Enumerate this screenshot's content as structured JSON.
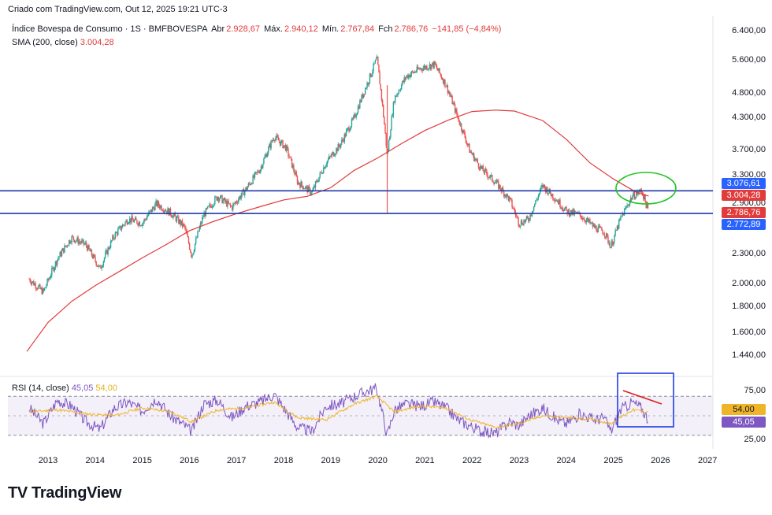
{
  "created_by": "Criado com TradingView.com, Out 12, 2025 19:21 UTC-3",
  "header": {
    "title": "Índice Bovespa de Consumo · 1S · BMFBOVESPA",
    "open_label": "Abr",
    "open_value": "2.928,67",
    "high_label": "Máx.",
    "high_value": "2.940,12",
    "low_label": "Mín.",
    "low_value": "2.767,84",
    "close_label": "Fch",
    "close_value": "2.786,76",
    "change_value": "−141,85 (−4,84%)"
  },
  "sma": {
    "label": "SMA (200, close)",
    "value": "3.004,28"
  },
  "rsi": {
    "label": "RSI (14, close)",
    "value": "45,05",
    "ma_value": "54,00"
  },
  "logo_text": "TradingView",
  "colors": {
    "price_up": "#26a69a",
    "price_down": "#ef5350",
    "sma": "#e23b3b",
    "blue_line": "#1e3aa8",
    "rsi": "#7e57c2",
    "rsi_ma": "#f0b429",
    "annotation_green": "#22c322",
    "annotation_blue": "#1f3de0",
    "annotation_red": "#e01d1d",
    "badge_blue": "#2962ff",
    "badge_red": "#e23b3b"
  },
  "chart_data": [
    {
      "type": "line",
      "title": "Índice Bovespa de Consumo · 1S · BMFBOVESPA",
      "scale": "log",
      "x_ticks": [
        "2013",
        "2014",
        "2015",
        "2016",
        "2017",
        "2018",
        "2019",
        "2020",
        "2021",
        "2022",
        "2023",
        "2024",
        "2025",
        "2026",
        "2027"
      ],
      "y_ticks": [
        "6.400,00",
        "5.600,00",
        "4.800,00",
        "4.300,00",
        "3.700,00",
        "3.300,00",
        "2.900,00",
        "2.300,00",
        "2.000,00",
        "1.800,00",
        "1.600,00",
        "1.440,00"
      ],
      "ylim": [
        1380,
        6700
      ],
      "series": [
        {
          "name": "Preço (close)",
          "x": [
            2012.6,
            2012.9,
            2013.2,
            2013.5,
            2013.8,
            2014.1,
            2014.4,
            2014.7,
            2015.0,
            2015.3,
            2015.6,
            2015.9,
            2016.05,
            2016.3,
            2016.6,
            2016.9,
            2017.2,
            2017.5,
            2017.8,
            2018.05,
            2018.3,
            2018.6,
            2018.9,
            2019.2,
            2019.5,
            2019.8,
            2019.98,
            2020.2,
            2020.35,
            2020.6,
            2020.9,
            2021.2,
            2021.45,
            2021.7,
            2021.95,
            2022.2,
            2022.5,
            2022.8,
            2023.0,
            2023.2,
            2023.5,
            2023.8,
            2024.0,
            2024.3,
            2024.6,
            2024.8,
            2024.95,
            2025.15,
            2025.4,
            2025.6,
            2025.75
          ],
          "values": [
            2050,
            1930,
            2250,
            2480,
            2400,
            2150,
            2500,
            2700,
            2650,
            2900,
            2780,
            2600,
            2280,
            2750,
            3000,
            2850,
            3100,
            3400,
            3950,
            3750,
            3200,
            3050,
            3500,
            3800,
            4300,
            5100,
            5650,
            3600,
            4700,
            5200,
            5400,
            5500,
            5000,
            4300,
            3700,
            3400,
            3200,
            2950,
            2650,
            2700,
            3150,
            2950,
            2800,
            2750,
            2600,
            2550,
            2380,
            2700,
            3000,
            3080,
            2787
          ]
        },
        {
          "name": "SMA (200, close)",
          "x": [
            2012.55,
            2013.0,
            2013.5,
            2014.0,
            2014.5,
            2015.0,
            2015.5,
            2016.0,
            2016.5,
            2017.0,
            2017.5,
            2018.0,
            2018.5,
            2019.0,
            2019.5,
            2020.0,
            2020.5,
            2021.0,
            2021.5,
            2022.0,
            2022.5,
            2022.9,
            2023.5,
            2024.0,
            2024.5,
            2025.0,
            2025.5,
            2025.75
          ],
          "values": [
            1470,
            1680,
            1850,
            1990,
            2120,
            2260,
            2400,
            2560,
            2670,
            2770,
            2860,
            2950,
            3000,
            3120,
            3380,
            3580,
            3820,
            4060,
            4260,
            4430,
            4460,
            4440,
            4250,
            3900,
            3500,
            3250,
            3050,
            3004
          ]
        }
      ],
      "horizontal_lines": [
        3076.61,
        2772.89
      ],
      "price_badges": [
        {
          "text": "3.076,61",
          "value": 3076.61,
          "color": "blue"
        },
        {
          "text": "3.004,28",
          "value": 3004.28,
          "color": "red"
        },
        {
          "text": "2.786,76",
          "value": 2786.76,
          "color": "red"
        },
        {
          "text": "2.772,89",
          "value": 2772.89,
          "color": "blue"
        }
      ]
    },
    {
      "type": "line",
      "title": "RSI (14, close)",
      "y_ticks": [
        "75,00",
        "25,00"
      ],
      "ylim": [
        22,
        85
      ],
      "band": [
        30,
        70
      ],
      "series": [
        {
          "name": "RSI",
          "x": [
            2012.6,
            2012.9,
            2013.2,
            2013.5,
            2013.8,
            2014.1,
            2014.4,
            2014.7,
            2015.0,
            2015.3,
            2015.6,
            2015.9,
            2016.05,
            2016.3,
            2016.6,
            2016.9,
            2017.2,
            2017.5,
            2017.8,
            2018.05,
            2018.3,
            2018.6,
            2018.9,
            2019.2,
            2019.5,
            2019.8,
            2019.98,
            2020.2,
            2020.35,
            2020.6,
            2020.9,
            2021.2,
            2021.45,
            2021.7,
            2021.95,
            2022.2,
            2022.5,
            2022.8,
            2023.0,
            2023.2,
            2023.5,
            2023.8,
            2024.0,
            2024.3,
            2024.6,
            2024.8,
            2024.95,
            2025.15,
            2025.4,
            2025.6,
            2025.75
          ],
          "values": [
            58,
            42,
            66,
            60,
            44,
            36,
            58,
            64,
            55,
            68,
            50,
            40,
            34,
            62,
            66,
            48,
            60,
            64,
            72,
            55,
            38,
            34,
            60,
            62,
            70,
            76,
            78,
            30,
            56,
            62,
            60,
            64,
            58,
            46,
            40,
            34,
            32,
            44,
            40,
            50,
            58,
            46,
            42,
            52,
            46,
            48,
            34,
            56,
            64,
            58,
            45.05
          ]
        },
        {
          "name": "RSI-based MA",
          "x": [
            2012.6,
            2013.2,
            2013.8,
            2014.4,
            2015.0,
            2015.6,
            2016.05,
            2016.6,
            2017.2,
            2017.8,
            2018.3,
            2018.9,
            2019.5,
            2019.98,
            2020.35,
            2020.9,
            2021.45,
            2021.95,
            2022.5,
            2023.0,
            2023.5,
            2024.0,
            2024.6,
            2024.95,
            2025.4,
            2025.75
          ],
          "values": [
            54,
            56,
            52,
            50,
            58,
            54,
            44,
            56,
            58,
            64,
            48,
            46,
            62,
            70,
            54,
            60,
            58,
            46,
            38,
            42,
            50,
            48,
            46,
            42,
            56,
            54
          ]
        }
      ]
    }
  ]
}
